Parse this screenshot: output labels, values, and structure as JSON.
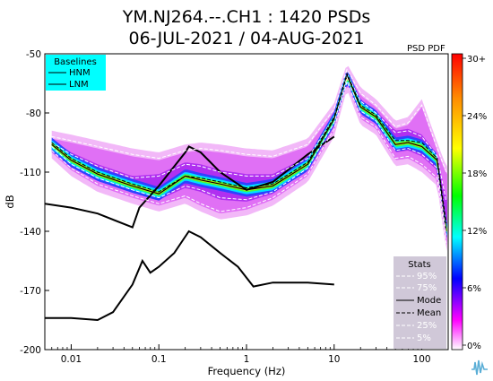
{
  "chart_data": {
    "type": "heatmap",
    "title_line1": "YM.NJ264.--.CH1 : 1420 PSDs",
    "title_line2": "06-JUL-2021 / 04-AUG-2021",
    "xlabel": "Frequency (Hz)",
    "ylabel": "dB",
    "x_scale": "log",
    "xlim": [
      0.005,
      200
    ],
    "ylim": [
      -200,
      -50
    ],
    "x_ticks": [
      0.01,
      0.1,
      1,
      10,
      100
    ],
    "x_tick_labels": [
      "0.01",
      "0.1",
      "1",
      "10",
      "100"
    ],
    "y_ticks": [
      -50,
      -80,
      -110,
      -140,
      -170,
      -200
    ],
    "y_tick_labels": [
      "-50",
      "-80",
      "-110",
      "-140",
      "-170",
      "-200"
    ],
    "pdf_label": "PSD PDF",
    "colorbar": {
      "ticks": [
        "30+",
        "24%",
        "18%",
        "12%",
        "6%",
        "0%"
      ],
      "stops": [
        "#ff0000",
        "#ff8c00",
        "#ffff00",
        "#00ff00",
        "#00ffff",
        "#0000ff",
        "#ff00ff",
        "#ffffff"
      ]
    },
    "baselines_legend": {
      "title": "Baselines",
      "items": [
        "HNM",
        "LNM"
      ],
      "background": "#00ffff"
    },
    "stats_legend": {
      "title": "Stats",
      "items": [
        "95%",
        "75%",
        "Mode",
        "Mean",
        "25%",
        "5%"
      ],
      "background": "#d0c8d8"
    },
    "series": [
      {
        "name": "HNM",
        "x": [
          0.005,
          0.01,
          0.02,
          0.05,
          0.06,
          0.1,
          0.2,
          0.22,
          0.3,
          0.5,
          1,
          2,
          5,
          10
        ],
        "y": [
          -126,
          -128,
          -131,
          -138,
          -128,
          -117,
          -100,
          -97,
          -100,
          -110,
          -119,
          -115,
          -101,
          -92
        ]
      },
      {
        "name": "LNM",
        "x": [
          0.005,
          0.01,
          0.02,
          0.03,
          0.05,
          0.065,
          0.08,
          0.1,
          0.15,
          0.22,
          0.3,
          0.5,
          0.8,
          1.2,
          2,
          5,
          10
        ],
        "y": [
          -184,
          -184,
          -185,
          -181,
          -167,
          -155,
          -161,
          -158,
          -151,
          -140,
          -143,
          -151,
          -158,
          -168,
          -166,
          -166,
          -167
        ]
      },
      {
        "name": "95%",
        "x": [
          0.006,
          0.01,
          0.02,
          0.05,
          0.1,
          0.2,
          0.3,
          0.5,
          1,
          2,
          5,
          10,
          14,
          20,
          30,
          50,
          70,
          100,
          150,
          190
        ],
        "y": [
          -92,
          -94,
          -97,
          -101,
          -103,
          -99,
          -98,
          -99,
          -101,
          -102,
          -96,
          -78,
          -58,
          -70,
          -76,
          -87,
          -85,
          -76,
          -98,
          -110
        ]
      },
      {
        "name": "75%",
        "x": [
          0.006,
          0.01,
          0.02,
          0.05,
          0.1,
          0.2,
          0.3,
          0.5,
          1,
          2,
          5,
          10,
          14,
          20,
          30,
          50,
          70,
          100,
          150,
          190
        ],
        "y": [
          -95,
          -101,
          -107,
          -113,
          -112,
          -106,
          -107,
          -110,
          -112,
          -112,
          -103,
          -82,
          -60,
          -74,
          -80,
          -90,
          -89,
          -92,
          -102,
          -125
        ]
      },
      {
        "name": "Mode",
        "x": [
          0.006,
          0.01,
          0.02,
          0.05,
          0.1,
          0.2,
          0.3,
          0.5,
          1,
          2,
          5,
          10,
          14,
          20,
          30,
          50,
          70,
          100,
          150,
          190
        ],
        "y": [
          -96,
          -104,
          -111,
          -117,
          -121,
          -112,
          -114,
          -116,
          -119,
          -117,
          -106,
          -83,
          -61,
          -77,
          -82,
          -96,
          -95,
          -97,
          -104,
          -140
        ]
      },
      {
        "name": "Mean",
        "x": [
          0.006,
          0.01,
          0.02,
          0.05,
          0.1,
          0.2,
          0.3,
          0.5,
          1,
          2,
          5,
          10,
          14,
          20,
          30,
          50,
          70,
          100,
          150,
          190
        ],
        "y": [
          -95,
          -103,
          -110,
          -116,
          -120,
          -112,
          -113,
          -115,
          -118,
          -116,
          -105,
          -82,
          -60,
          -76,
          -81,
          -94,
          -94,
          -95,
          -103,
          -136
        ]
      },
      {
        "name": "25%",
        "x": [
          0.006,
          0.01,
          0.02,
          0.05,
          0.1,
          0.2,
          0.3,
          0.5,
          1,
          2,
          5,
          10,
          14,
          20,
          30,
          50,
          70,
          100,
          150,
          190
        ],
        "y": [
          -97,
          -106,
          -113,
          -119,
          -123,
          -117,
          -119,
          -123,
          -124,
          -120,
          -108,
          -85,
          -62,
          -79,
          -84,
          -99,
          -98,
          -101,
          -108,
          -142
        ]
      },
      {
        "name": "5%",
        "x": [
          0.006,
          0.01,
          0.02,
          0.05,
          0.1,
          0.2,
          0.3,
          0.5,
          1,
          2,
          5,
          10,
          14,
          20,
          30,
          50,
          70,
          100,
          150,
          190
        ],
        "y": [
          -99,
          -108,
          -116,
          -122,
          -126,
          -122,
          -126,
          -130,
          -128,
          -123,
          -111,
          -88,
          -64,
          -82,
          -87,
          -103,
          -102,
          -106,
          -113,
          -146
        ]
      }
    ]
  }
}
